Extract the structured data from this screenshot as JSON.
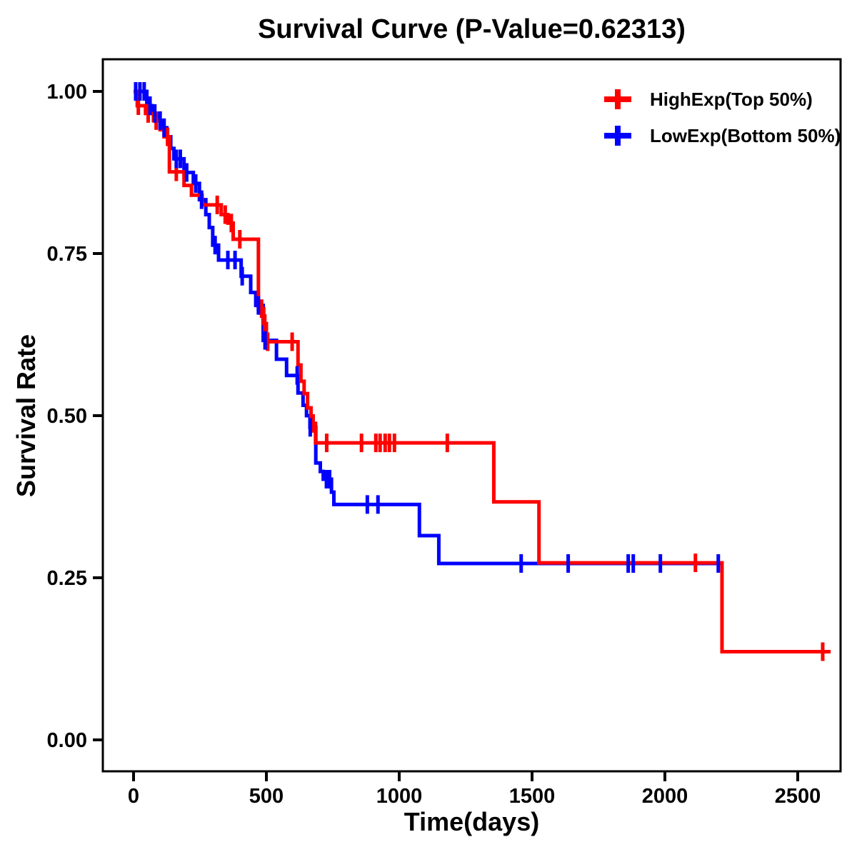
{
  "chart_data": {
    "type": "line",
    "variant": "kaplan-meier-survival-step",
    "title": "Survival Curve (P-Value=0.62313)",
    "p_value": 0.62313,
    "grid": false,
    "x_axis": {
      "label": "Time(days)",
      "tick_values": [
        0,
        500,
        1000,
        1500,
        2000,
        2500
      ],
      "tick_labels": [
        "0",
        "500",
        "1000",
        "1500",
        "2000",
        "2500"
      ],
      "range": [
        0,
        2660
      ]
    },
    "y_axis": {
      "label": "Survival Rate",
      "tick_values": [
        0,
        0.25,
        0.5,
        0.75,
        1
      ],
      "tick_labels": [
        "0.00",
        "0.25",
        "0.50",
        "0.75",
        "1.00"
      ],
      "range": [
        -0.05,
        1.05
      ]
    },
    "legend": {
      "position": "top-right",
      "marker": "plus"
    },
    "series": [
      {
        "name": "HighExp(Top 50%)",
        "color": "#FF0000",
        "steps": [
          [
            0,
            1.0
          ],
          [
            14,
            0.978
          ],
          [
            45,
            0.966
          ],
          [
            75,
            0.955
          ],
          [
            100,
            0.941
          ],
          [
            115,
            0.93
          ],
          [
            135,
            0.876
          ],
          [
            190,
            0.855
          ],
          [
            218,
            0.84
          ],
          [
            258,
            0.825
          ],
          [
            330,
            0.81
          ],
          [
            355,
            0.797
          ],
          [
            375,
            0.772
          ],
          [
            470,
            0.665
          ],
          [
            490,
            0.642
          ],
          [
            500,
            0.614
          ],
          [
            619,
            0.578
          ],
          [
            630,
            0.553
          ],
          [
            642,
            0.534
          ],
          [
            655,
            0.512
          ],
          [
            668,
            0.488
          ],
          [
            685,
            0.458
          ],
          [
            1356,
            0.367
          ],
          [
            1526,
            0.273
          ],
          [
            2215,
            0.136
          ],
          [
            2624,
            0.136
          ]
        ],
        "censors": [
          [
            18,
            0.978
          ],
          [
            55,
            0.966
          ],
          [
            85,
            0.955
          ],
          [
            128,
            0.93
          ],
          [
            161,
            0.876
          ],
          [
            315,
            0.825
          ],
          [
            345,
            0.81
          ],
          [
            368,
            0.797
          ],
          [
            400,
            0.772
          ],
          [
            482,
            0.665
          ],
          [
            494,
            0.642
          ],
          [
            505,
            0.614
          ],
          [
            597,
            0.614
          ],
          [
            676,
            0.488
          ],
          [
            727,
            0.458
          ],
          [
            858,
            0.458
          ],
          [
            912,
            0.458
          ],
          [
            928,
            0.458
          ],
          [
            947,
            0.458
          ],
          [
            963,
            0.458
          ],
          [
            982,
            0.458
          ],
          [
            1181,
            0.458
          ],
          [
            2115,
            0.273
          ],
          [
            2594,
            0.136
          ]
        ]
      },
      {
        "name": "LowExp(Bottom 50%)",
        "color": "#0000FF",
        "steps": [
          [
            0,
            1.0
          ],
          [
            50,
            0.978
          ],
          [
            70,
            0.966
          ],
          [
            90,
            0.955
          ],
          [
            108,
            0.944
          ],
          [
            125,
            0.93
          ],
          [
            140,
            0.912
          ],
          [
            152,
            0.896
          ],
          [
            190,
            0.875
          ],
          [
            225,
            0.858
          ],
          [
            248,
            0.833
          ],
          [
            272,
            0.81
          ],
          [
            285,
            0.79
          ],
          [
            298,
            0.763
          ],
          [
            320,
            0.74
          ],
          [
            405,
            0.715
          ],
          [
            441,
            0.69
          ],
          [
            460,
            0.67
          ],
          [
            488,
            0.616
          ],
          [
            538,
            0.587
          ],
          [
            576,
            0.562
          ],
          [
            619,
            0.535
          ],
          [
            638,
            0.516
          ],
          [
            651,
            0.5
          ],
          [
            664,
            0.482
          ],
          [
            686,
            0.427
          ],
          [
            703,
            0.414
          ],
          [
            714,
            0.402
          ],
          [
            745,
            0.382
          ],
          [
            754,
            0.363
          ],
          [
            1076,
            0.315
          ],
          [
            1149,
            0.272
          ],
          [
            2212,
            0.272
          ]
        ],
        "censors": [
          [
            8,
            1.0
          ],
          [
            24,
            1.0
          ],
          [
            40,
            1.0
          ],
          [
            62,
            0.978
          ],
          [
            80,
            0.966
          ],
          [
            100,
            0.955
          ],
          [
            115,
            0.944
          ],
          [
            161,
            0.896
          ],
          [
            176,
            0.896
          ],
          [
            200,
            0.875
          ],
          [
            234,
            0.858
          ],
          [
            256,
            0.833
          ],
          [
            307,
            0.763
          ],
          [
            355,
            0.74
          ],
          [
            382,
            0.74
          ],
          [
            409,
            0.715
          ],
          [
            470,
            0.67
          ],
          [
            495,
            0.616
          ],
          [
            616,
            0.562
          ],
          [
            665,
            0.482
          ],
          [
            726,
            0.402
          ],
          [
            738,
            0.402
          ],
          [
            880,
            0.363
          ],
          [
            920,
            0.363
          ],
          [
            1459,
            0.272
          ],
          [
            1636,
            0.272
          ],
          [
            1862,
            0.272
          ],
          [
            1881,
            0.272
          ],
          [
            1983,
            0.272
          ],
          [
            2201,
            0.272
          ]
        ]
      }
    ]
  }
}
